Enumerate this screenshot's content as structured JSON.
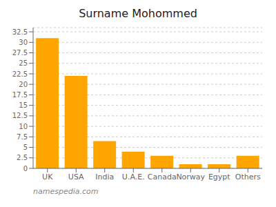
{
  "chart_data": {
    "type": "bar",
    "title": "Surname Mohommed",
    "categories": [
      "UK",
      "USA",
      "India",
      "U.A.E.",
      "Canada",
      "Norway",
      "Egypt",
      "Others"
    ],
    "values": [
      31.0,
      22.0,
      6.5,
      4.0,
      3.0,
      1.0,
      1.0,
      3.0
    ],
    "color": "#FFA500",
    "ylim": [
      0,
      33.5
    ],
    "yticks": [
      0,
      2.5,
      5,
      7.5,
      10,
      12.5,
      15,
      17.5,
      20,
      22.5,
      25,
      27.5,
      30,
      32.5
    ],
    "grid": true,
    "annotations": [
      "namespedia.com"
    ]
  }
}
